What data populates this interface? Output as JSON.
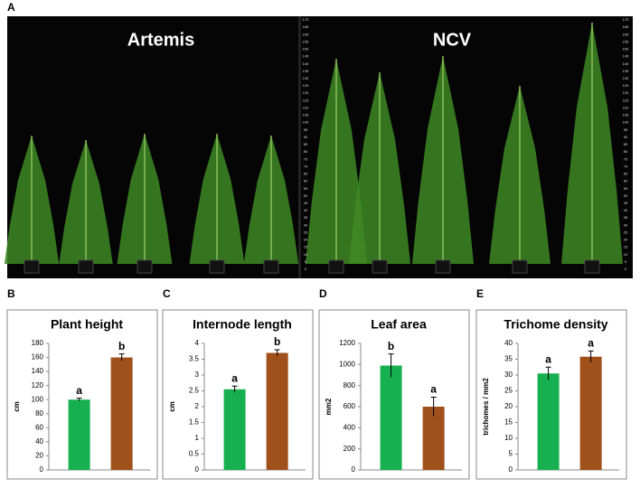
{
  "figure": {
    "panel_labels": [
      "A",
      "B",
      "C",
      "D",
      "E"
    ],
    "photo_labels": [
      "Artemis",
      "NCV"
    ],
    "ruler": [
      0,
      5,
      10,
      15,
      20,
      25,
      30,
      35,
      40,
      45,
      50,
      55,
      60,
      65,
      70,
      75,
      80,
      85,
      90,
      95,
      100,
      105,
      110,
      115,
      120,
      125,
      130,
      135,
      140,
      145,
      150,
      155,
      160,
      165,
      170
    ]
  },
  "chart_data": [
    {
      "type": "bar",
      "title": "Plant height",
      "ylabel": "cm",
      "ylim": [
        0,
        180
      ],
      "yticks": [
        0,
        20,
        40,
        60,
        80,
        100,
        120,
        140,
        160,
        180
      ],
      "values": [
        100,
        160
      ],
      "errors": [
        2,
        5
      ],
      "annotations": [
        "a",
        "b"
      ],
      "colors": [
        "#17b050",
        "#a0501a"
      ]
    },
    {
      "type": "bar",
      "title": "Internode length",
      "ylabel": "cm",
      "ylim": [
        0,
        4
      ],
      "yticks": [
        0,
        0.5,
        1,
        1.5,
        2,
        2.5,
        3,
        3.5,
        4
      ],
      "values": [
        2.55,
        3.7
      ],
      "errors": [
        0.1,
        0.1
      ],
      "annotations": [
        "a",
        "b"
      ],
      "colors": [
        "#17b050",
        "#a0501a"
      ]
    },
    {
      "type": "bar",
      "title": "Leaf area",
      "ylabel": "mm2",
      "ylim": [
        0,
        1200
      ],
      "yticks": [
        0,
        200,
        400,
        600,
        800,
        1000,
        1200
      ],
      "values": [
        990,
        600
      ],
      "errors": [
        110,
        90
      ],
      "annotations": [
        "b",
        "a"
      ],
      "colors": [
        "#17b050",
        "#a0501a"
      ]
    },
    {
      "type": "bar",
      "title": "Trichome density",
      "ylabel": "trichomes / mm2",
      "ylim": [
        0,
        40
      ],
      "yticks": [
        0,
        5,
        10,
        15,
        20,
        25,
        30,
        35,
        40
      ],
      "values": [
        30.5,
        35.8
      ],
      "errors": [
        2,
        1.8
      ],
      "annotations": [
        "a",
        "a"
      ],
      "colors": [
        "#17b050",
        "#a0501a"
      ]
    }
  ]
}
